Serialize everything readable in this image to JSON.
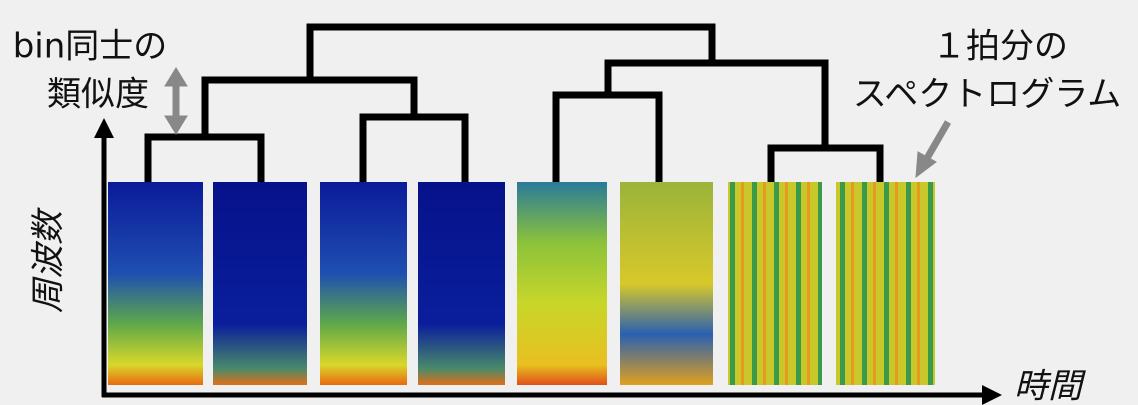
{
  "similarity_label": {
    "line1": "bin同士の",
    "line2": "類似度"
  },
  "spectrogram_label": {
    "line1": "１拍分の",
    "line2": "スペクトログラム"
  },
  "y_axis_label": "周波数",
  "x_axis_label": "時間"
}
